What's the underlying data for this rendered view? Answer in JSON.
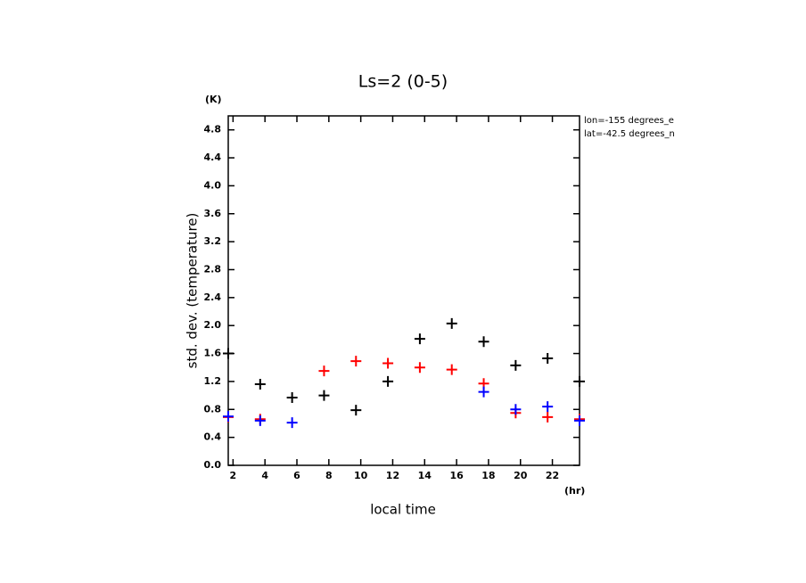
{
  "chart_data": {
    "type": "scatter",
    "title": "Ls=2 (0-5)",
    "y_unit": "(K)",
    "y_label": "std. dev. (temperature)",
    "x_label": "local time",
    "x_unit": "(hr)",
    "annotations": [
      "lon=-155 degrees_e",
      "lat=-42.5 degrees_n"
    ],
    "x": [
      1.7,
      3.7,
      5.7,
      7.7,
      9.7,
      11.7,
      13.7,
      15.7,
      17.7,
      19.7,
      21.7,
      23.7
    ],
    "series": [
      {
        "color": "#000000",
        "values": [
          1.6,
          1.16,
          0.97,
          1.0,
          0.79,
          1.2,
          1.81,
          2.03,
          1.77,
          1.43,
          1.53,
          1.2
        ]
      },
      {
        "color": "#ff0000",
        "values": [
          0.69,
          0.66,
          null,
          1.35,
          1.49,
          1.46,
          1.4,
          1.37,
          1.17,
          0.75,
          0.69,
          0.66
        ]
      },
      {
        "color": "#0000ff",
        "values": [
          0.7,
          0.64,
          0.61,
          null,
          null,
          null,
          null,
          null,
          1.05,
          0.8,
          0.84,
          0.64
        ]
      }
    ],
    "xlim": [
      1.7,
      23.7
    ],
    "ylim": [
      0,
      5
    ],
    "xticks": [
      2,
      4,
      6,
      8,
      10,
      12,
      14,
      16,
      18,
      20,
      22
    ],
    "yticks": [
      {
        "value": 0,
        "label": "0.0"
      },
      0.4,
      0.8,
      1.2,
      1.6,
      {
        "value": 2,
        "label": "2.0"
      },
      2.4,
      2.8,
      3.2,
      3.6,
      {
        "value": 4,
        "label": "4.0"
      },
      4.4,
      4.8
    ]
  }
}
